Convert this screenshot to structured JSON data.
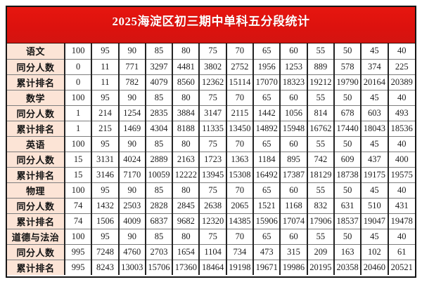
{
  "title": "2025海淀区初三期中单科五分段统计",
  "colors": {
    "banner_red": "#dd120e",
    "label_column_bg": "#fce4d6",
    "title_text": "#ffffff",
    "cell_text": "#1c1c1c",
    "grid_vertical": "#242424",
    "grid_horizontal": "#7d7d7d",
    "outer_border": "#161616"
  },
  "table": {
    "row_labels": {
      "count": "同分人数",
      "rank": "累计排名"
    },
    "scores": [
      100,
      95,
      90,
      85,
      80,
      75,
      70,
      65,
      60,
      55,
      50,
      45,
      40
    ],
    "subjects": [
      {
        "name": "语文",
        "counts": [
          0,
          11,
          771,
          3297,
          4481,
          3802,
          2752,
          1956,
          1253,
          889,
          578,
          374,
          225
        ],
        "ranks": [
          0,
          11,
          782,
          4079,
          8560,
          12362,
          15114,
          17070,
          18323,
          19212,
          19790,
          20164,
          20389
        ]
      },
      {
        "name": "数学",
        "counts": [
          1,
          214,
          1254,
          2835,
          3884,
          3147,
          2115,
          1442,
          1056,
          814,
          678,
          603,
          493
        ],
        "ranks": [
          1,
          215,
          1469,
          4304,
          8188,
          11335,
          13450,
          14892,
          15948,
          16762,
          17440,
          18043,
          18536
        ]
      },
      {
        "name": "英语",
        "counts": [
          15,
          3131,
          4024,
          2889,
          2163,
          1723,
          1363,
          1184,
          895,
          742,
          609,
          437,
          400
        ],
        "ranks": [
          15,
          3146,
          7170,
          10059,
          12222,
          13945,
          15308,
          16492,
          17387,
          18129,
          18738,
          19175,
          19575
        ]
      },
      {
        "name": "物理",
        "counts": [
          74,
          1432,
          2503,
          2828,
          2845,
          2638,
          2065,
          1521,
          1168,
          832,
          631,
          510,
          431
        ],
        "ranks": [
          74,
          1506,
          4009,
          6837,
          9682,
          12320,
          14385,
          15906,
          17074,
          17906,
          18537,
          19047,
          19478
        ]
      },
      {
        "name": "道德与法治",
        "counts": [
          995,
          7248,
          4760,
          2703,
          1654,
          1104,
          734,
          473,
          315,
          209,
          163,
          102,
          61
        ],
        "ranks": [
          995,
          8243,
          13003,
          15706,
          17360,
          18464,
          19198,
          19671,
          19986,
          20195,
          20358,
          20460,
          20521
        ]
      }
    ]
  }
}
